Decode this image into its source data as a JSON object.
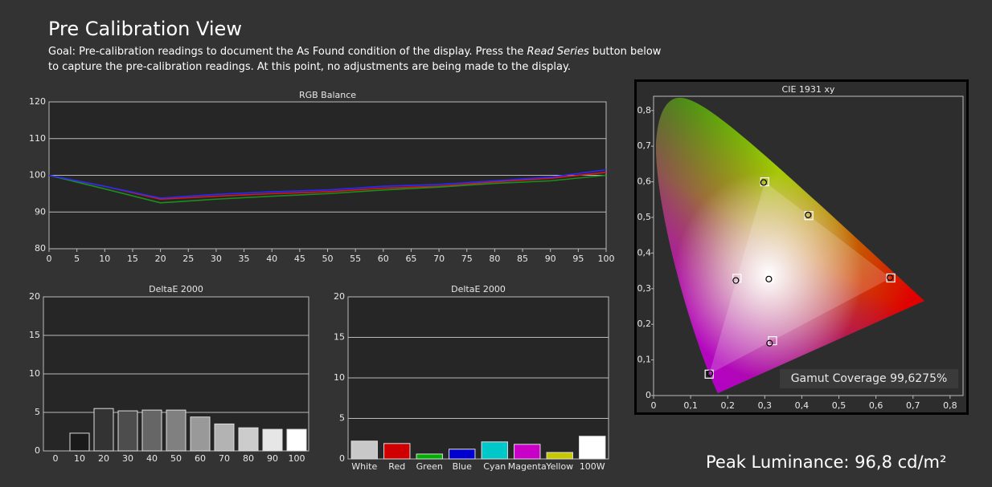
{
  "page": {
    "title": "Pre Calibration View",
    "goal": [
      "Goal: Pre-calibration readings to document the As Found condition of the display. Press the ",
      "Read Series",
      " button below to capture the pre-calibration readings. At this point, no adjustments are being made to the display."
    ],
    "peak_luminance": "Peak Luminance: 96,8 cd/m²"
  },
  "chart_data": [
    {
      "type": "line",
      "title": "RGB Balance",
      "x": [
        0,
        10,
        20,
        30,
        40,
        50,
        60,
        70,
        80,
        90,
        100
      ],
      "series": [
        {
          "color": "#d81818",
          "values": [
            100,
            97,
            93.5,
            94.3,
            95,
            95.5,
            96.5,
            97,
            98.2,
            99.2,
            100.8
          ]
        },
        {
          "color": "#1b8f1b",
          "values": [
            100,
            96.3,
            92.5,
            93.5,
            94.3,
            95,
            96,
            96.8,
            97.8,
            98.5,
            100
          ]
        },
        {
          "color": "#2a2aff",
          "values": [
            100,
            97,
            93.8,
            94.8,
            95.5,
            96,
            97,
            97.5,
            98.5,
            99.5,
            101.5
          ]
        }
      ],
      "xlim": [
        0,
        100
      ],
      "xticks": [
        0,
        5,
        10,
        15,
        20,
        25,
        30,
        35,
        40,
        45,
        50,
        55,
        60,
        65,
        70,
        75,
        80,
        85,
        90,
        95,
        100
      ],
      "ylim": [
        80,
        120
      ],
      "yticks": [
        80,
        90,
        100,
        110,
        120
      ],
      "grid": true
    },
    {
      "type": "bar",
      "title": "DeltaE 2000",
      "categories": [
        "0",
        "10",
        "20",
        "30",
        "40",
        "50",
        "60",
        "70",
        "80",
        "90",
        "100"
      ],
      "values": [
        null,
        2.3,
        5.5,
        5.2,
        5.3,
        5.3,
        4.4,
        3.5,
        3.0,
        2.8,
        2.8
      ],
      "colors": [
        "#000000",
        "#1a1a1a",
        "#333333",
        "#4d4d4d",
        "#666666",
        "#808080",
        "#999999",
        "#b3b3b3",
        "#cccccc",
        "#e6e6e6",
        "#ffffff"
      ],
      "ylim": [
        0,
        20
      ],
      "yticks": [
        0,
        5,
        10,
        15,
        20
      ],
      "grid": true
    },
    {
      "type": "bar",
      "title": "DeltaE 2000",
      "categories": [
        "White",
        "Red",
        "Green",
        "Blue",
        "Cyan",
        "Magenta",
        "Yellow",
        "100W"
      ],
      "values": [
        2.2,
        1.9,
        0.6,
        1.2,
        2.1,
        1.8,
        0.8,
        2.8
      ],
      "colors": [
        "#c8c8c8",
        "#d00000",
        "#00b000",
        "#0000d0",
        "#00c8c8",
        "#c800c8",
        "#c8c800",
        "#ffffff"
      ],
      "ylim": [
        0,
        20
      ],
      "yticks": [
        0,
        5,
        10,
        15,
        20
      ],
      "grid": true
    },
    {
      "type": "scatter",
      "title": "CIE 1931 xy",
      "annotation": "Gamut Coverage 99,6275%",
      "series": [
        {
          "marker": "square",
          "color": "#ffffff",
          "x": [
            0.64,
            0.3,
            0.15,
            0.3127,
            0.225,
            0.321,
            0.419
          ],
          "y": [
            0.33,
            0.6,
            0.06,
            0.329,
            0.329,
            0.154,
            0.505
          ]
        },
        {
          "marker": "circle",
          "color": "#000000",
          "x": [
            0.638,
            0.297,
            0.152,
            0.311,
            0.222,
            0.313,
            0.417
          ],
          "y": [
            0.331,
            0.598,
            0.062,
            0.327,
            0.323,
            0.147,
            0.507
          ]
        }
      ],
      "xlim": [
        0,
        0.835
      ],
      "xticks": [
        0,
        {
          "value": 0.1,
          "label": "0,1"
        },
        {
          "value": 0.2,
          "label": "0,2"
        },
        {
          "value": 0.3,
          "label": "0,3"
        },
        {
          "value": 0.4,
          "label": "0,4"
        },
        {
          "value": 0.5,
          "label": "0,5"
        },
        {
          "value": 0.6,
          "label": "0,6"
        },
        {
          "value": 0.7,
          "label": "0,7"
        },
        {
          "value": 0.8,
          "label": "0,8"
        }
      ],
      "ylim": [
        0,
        0.84
      ],
      "yticks": [
        0,
        {
          "value": 0.1,
          "label": "0,1"
        },
        {
          "value": 0.2,
          "label": "0,2"
        },
        {
          "value": 0.3,
          "label": "0,3"
        },
        {
          "value": 0.4,
          "label": "0,4"
        },
        {
          "value": 0.5,
          "label": "0,5"
        },
        {
          "value": 0.6,
          "label": "0,6"
        },
        {
          "value": 0.7,
          "label": "0,7"
        },
        {
          "value": 0.8,
          "label": "0,8"
        }
      ]
    }
  ]
}
